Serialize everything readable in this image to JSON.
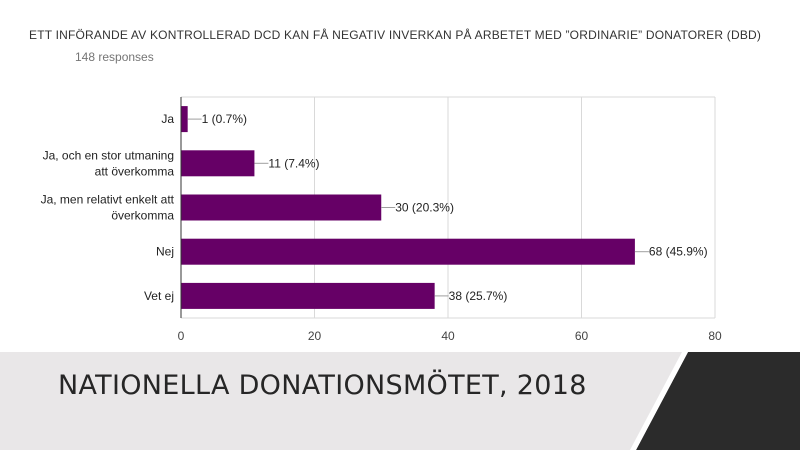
{
  "form": {
    "title": "ETT INFÖRANDE AV KONTROLLERAD DCD KAN FÅ NEGATIV INVERKAN PÅ ARBETET MED ”ORDINARIE” DONATORER (DBD)",
    "responses": "148 responses"
  },
  "footer": {
    "text": "NATIONELLA DONATIONSMÖTET, 2018"
  },
  "colors": {
    "bar": "#660066",
    "footer_band": "#e9e7e8",
    "footer_dark": "#2b2b2b",
    "grid": "#d9d9d9"
  },
  "chart_data": {
    "type": "bar",
    "orientation": "horizontal",
    "categories": [
      [
        "Ja"
      ],
      [
        "Ja, och en stor utmaning",
        "att överkomma"
      ],
      [
        "Ja, men relativt enkelt att",
        "överkomma"
      ],
      [
        "Nej"
      ],
      [
        "Vet ej"
      ]
    ],
    "values": [
      1,
      11,
      30,
      68,
      38
    ],
    "data_labels": [
      "1 (0.7%)",
      "11 (7.4%)",
      "30 (20.3%)",
      "68 (45.9%)",
      "38 (25.7%)"
    ],
    "xlim": [
      0,
      80
    ],
    "xticks": [
      0,
      20,
      40,
      60,
      80
    ],
    "grid": true,
    "legend": "none"
  }
}
